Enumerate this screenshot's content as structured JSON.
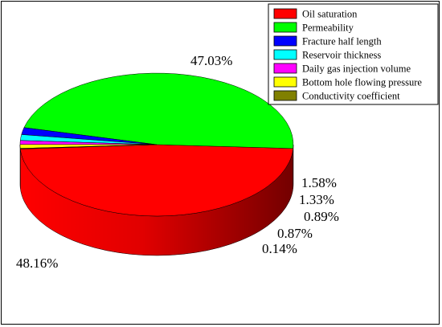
{
  "chart_data": {
    "type": "pie",
    "style": "3d",
    "legend_position": "top-right",
    "slices": [
      {
        "name": "Oil saturation",
        "value": 48.16,
        "label": "48.16%",
        "color": "#ff0000"
      },
      {
        "name": "Permeability",
        "value": 47.03,
        "label": "47.03%",
        "color": "#00ff00"
      },
      {
        "name": "Fracture half length",
        "value": 1.58,
        "label": "1.58%",
        "color": "#0000ff"
      },
      {
        "name": "Reservoir thickness",
        "value": 1.33,
        "label": "1.33%",
        "color": "#00ffff"
      },
      {
        "name": "Daily gas injection volume",
        "value": 0.89,
        "label": "0.89%",
        "color": "#ff00ff"
      },
      {
        "name": "Bottom hole flowing pressure",
        "value": 0.87,
        "label": "0.87%",
        "color": "#ffff00"
      },
      {
        "name": "Conductivity coefficient",
        "value": 0.14,
        "label": "0.14%",
        "color": "#808000"
      }
    ]
  }
}
